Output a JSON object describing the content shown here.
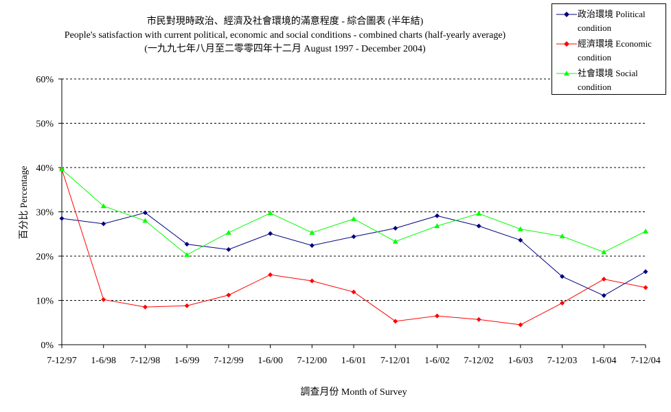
{
  "title": {
    "line1": "市民對現時政治、經濟及社會環境的滿意程度 - 綜合圖表 (半年結)",
    "line2": "People's satisfaction with current political, economic and social conditions - combined charts  (half-yearly average)",
    "line3": "(一九九七年八月至二零零四年十二月 August 1997 - December 2004)"
  },
  "chart_data": {
    "type": "line",
    "categories": [
      "7-12/97",
      "1-6/98",
      "7-12/98",
      "1-6/99",
      "7-12/99",
      "1-6/00",
      "7-12/00",
      "1-6/01",
      "7-12/01",
      "1-6/02",
      "7-12/02",
      "1-6/03",
      "7-12/03",
      "1-6/04",
      "7-12/04"
    ],
    "ylabel": "百分比 Percentage",
    "xlabel": "調查月份 Month of Survey",
    "ylim": [
      0,
      60
    ],
    "yticks": [
      "0%",
      "10%",
      "20%",
      "30%",
      "40%",
      "50%",
      "60%"
    ],
    "grid": true,
    "legend_position": "top-right",
    "series": [
      {
        "name": "政治環境 Political condition",
        "color": "#000080",
        "marker": "diamond",
        "values": [
          28.5,
          27.3,
          29.8,
          22.7,
          21.5,
          25.1,
          22.4,
          24.4,
          26.3,
          29.1,
          26.8,
          23.6,
          15.4,
          11.1,
          16.5
        ]
      },
      {
        "name": "經濟環境 Economic condition",
        "color": "#ff0000",
        "marker": "diamond",
        "values": [
          39.6,
          10.2,
          8.5,
          8.8,
          11.2,
          15.8,
          14.4,
          11.9,
          5.3,
          6.5,
          5.7,
          4.5,
          9.4,
          14.8,
          12.9
        ]
      },
      {
        "name": "社會環境 Social condition",
        "color": "#00ff00",
        "marker": "triangle",
        "values": [
          39.6,
          31.3,
          28.0,
          20.3,
          25.3,
          29.7,
          25.3,
          28.4,
          23.3,
          26.8,
          29.6,
          26.1,
          24.5,
          20.9,
          25.6
        ]
      }
    ]
  }
}
